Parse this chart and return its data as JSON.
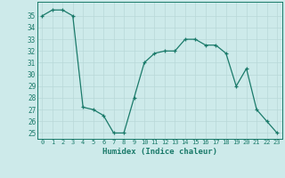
{
  "x": [
    0,
    1,
    2,
    3,
    4,
    5,
    6,
    7,
    8,
    9,
    10,
    11,
    12,
    13,
    14,
    15,
    16,
    17,
    18,
    19,
    20,
    21,
    22,
    23
  ],
  "y": [
    35,
    35.5,
    35.5,
    35,
    27.2,
    27,
    26.5,
    25,
    25,
    28,
    31,
    31.8,
    32,
    32,
    33,
    33,
    32.5,
    32.5,
    31.8,
    29,
    30.5,
    27,
    26,
    25
  ],
  "line_color": "#1a7a6a",
  "marker_color": "#1a7a6a",
  "bg_color": "#cdeaea",
  "grid_color": "#b8d8d8",
  "xlabel": "Humidex (Indice chaleur)",
  "ylim": [
    24.5,
    36.2
  ],
  "xlim": [
    -0.5,
    23.5
  ],
  "yticks": [
    25,
    26,
    27,
    28,
    29,
    30,
    31,
    32,
    33,
    34,
    35
  ],
  "xticks": [
    0,
    1,
    2,
    3,
    4,
    5,
    6,
    7,
    8,
    9,
    10,
    11,
    12,
    13,
    14,
    15,
    16,
    17,
    18,
    19,
    20,
    21,
    22,
    23
  ]
}
